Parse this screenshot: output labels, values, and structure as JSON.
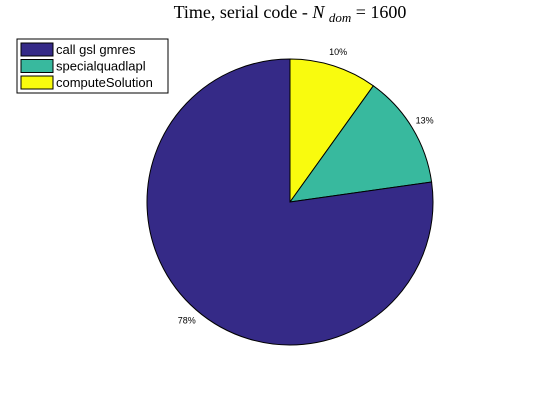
{
  "chart_data": {
    "type": "pie",
    "title": {
      "prefix": "Time, serial code - ",
      "var_base": "N",
      "var_sub": "dom",
      "suffix": " = 1600"
    },
    "slices": [
      {
        "name": "call gsl gmres",
        "value": 78,
        "label": "78%",
        "color": "#352a87"
      },
      {
        "name": "specialquadlapl",
        "value": 13,
        "label": "13%",
        "color": "#38b99e"
      },
      {
        "name": "computeSolution",
        "value": 10,
        "label": "10%",
        "color": "#f9fb0e"
      }
    ],
    "legend_position": "top-left",
    "legend_entries": [
      "call gsl gmres",
      "specialquadlapl",
      "computeSolution"
    ]
  }
}
